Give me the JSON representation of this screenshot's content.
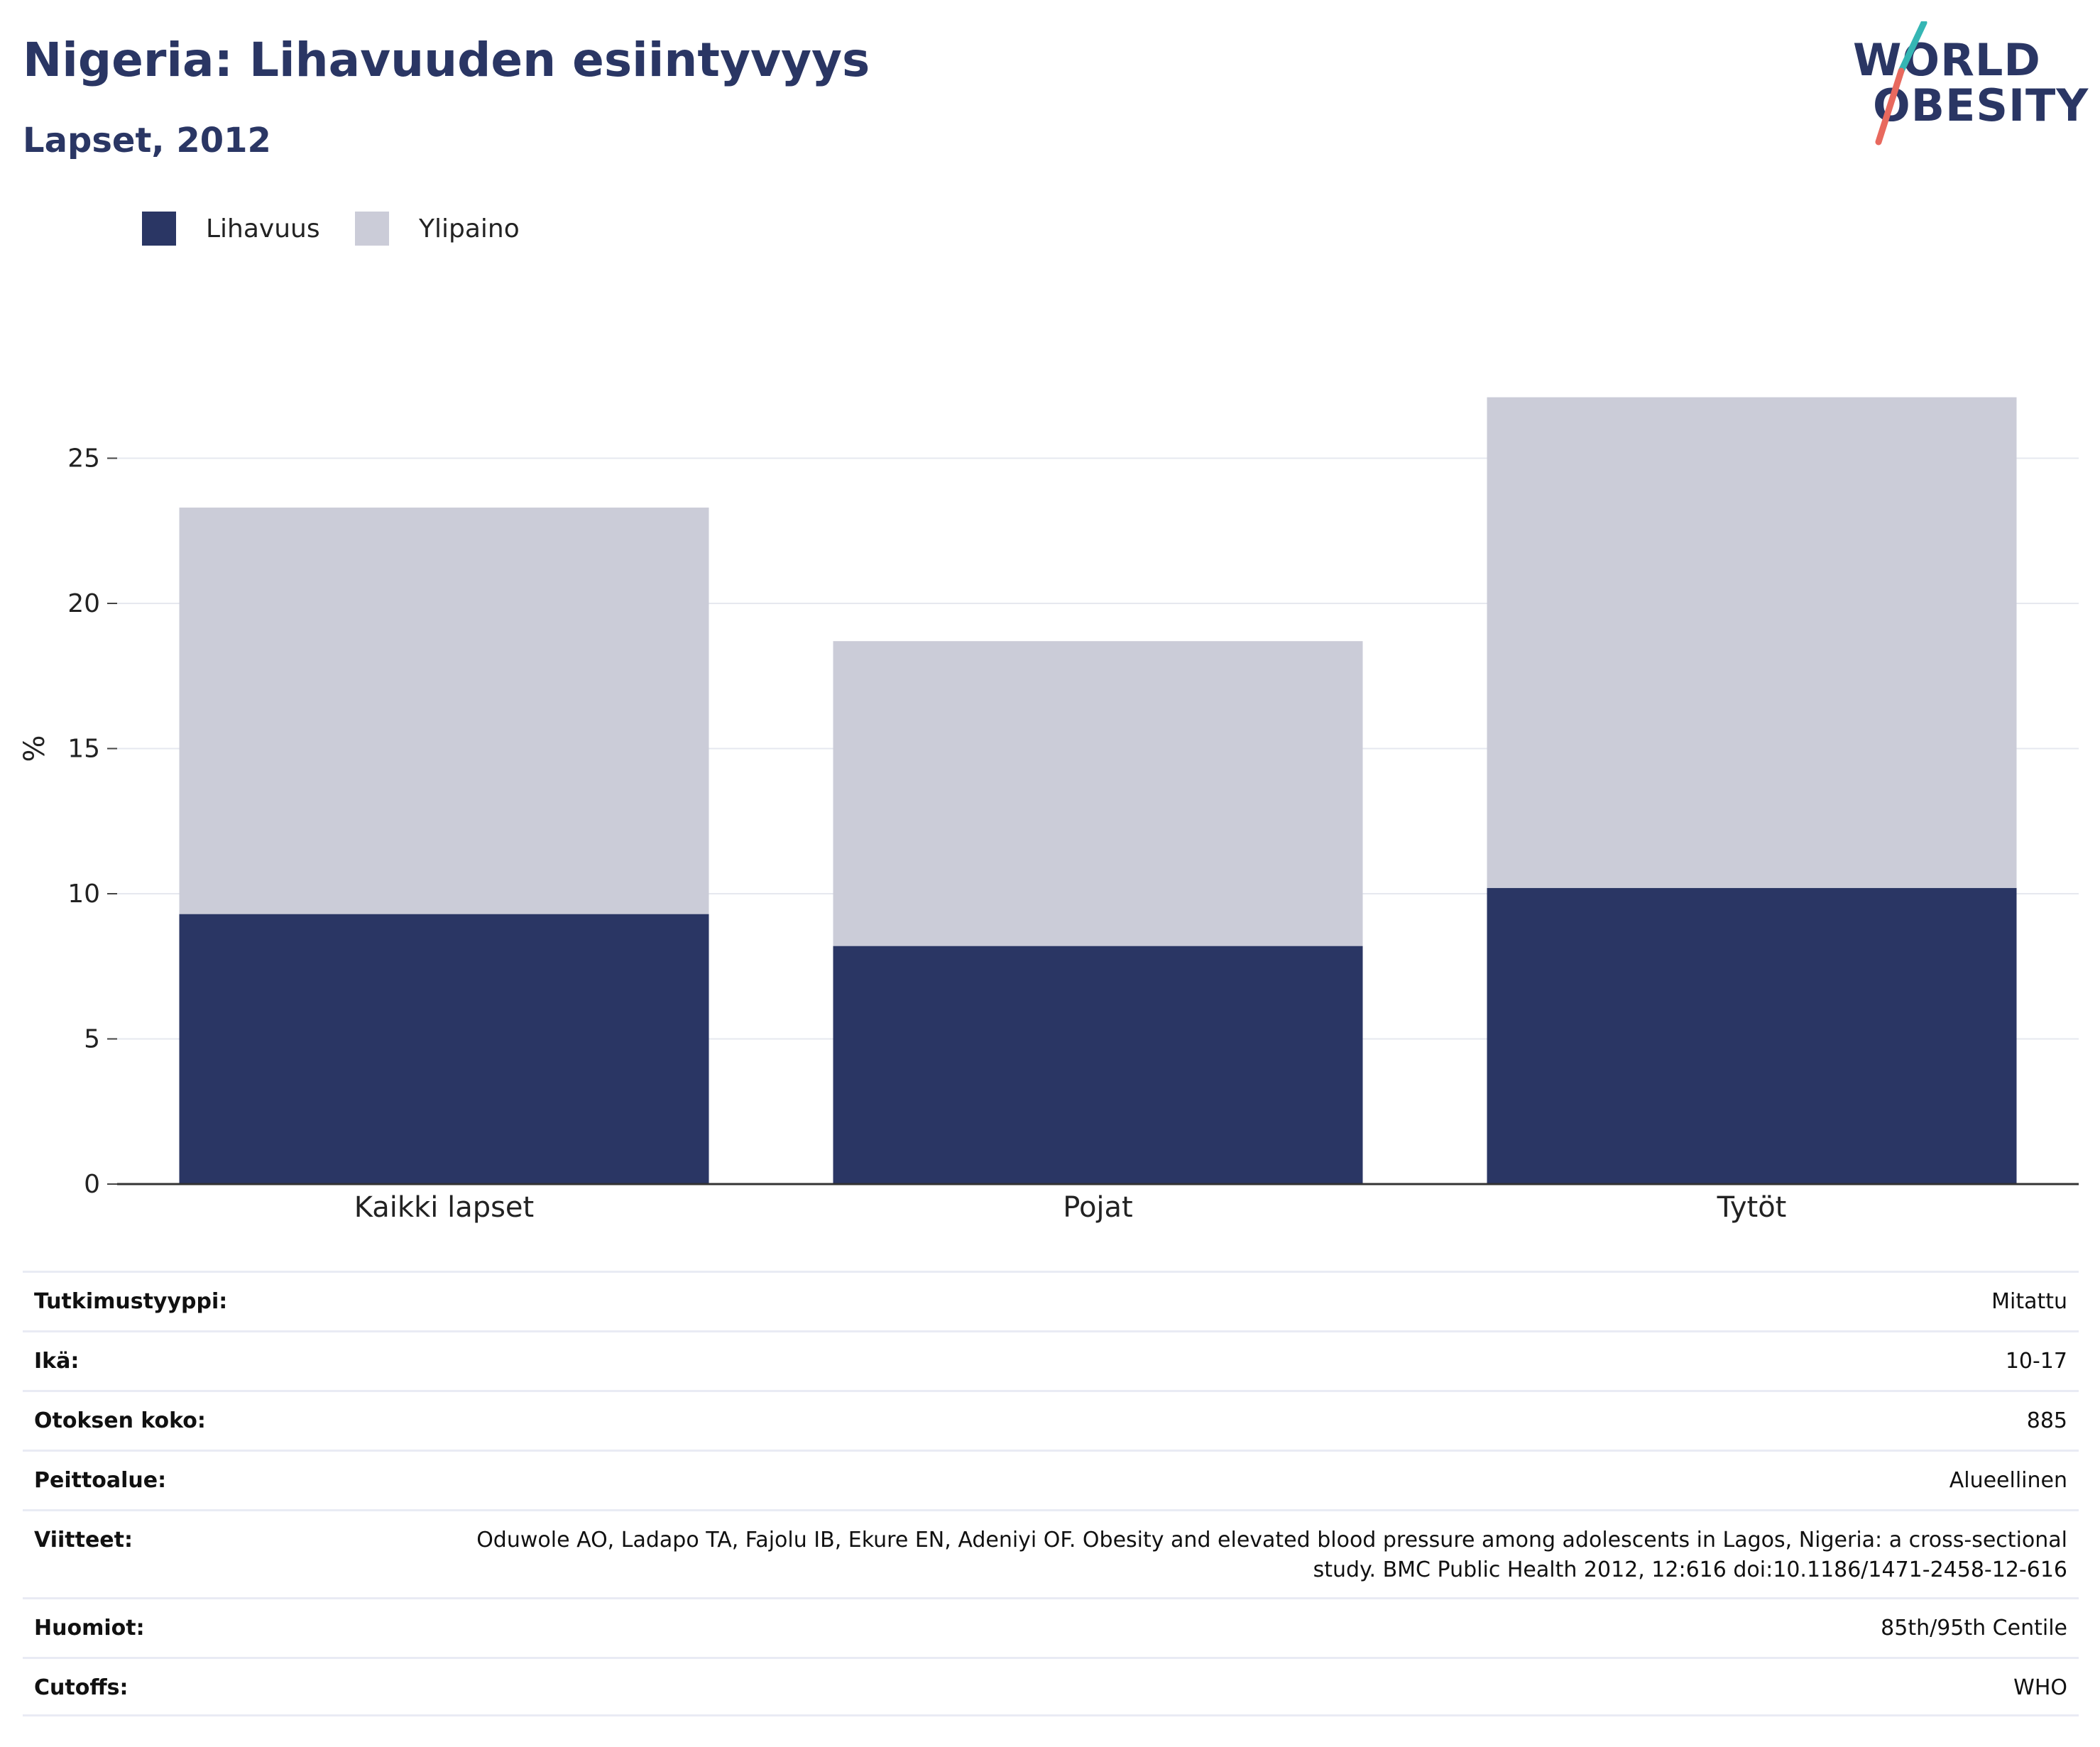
{
  "header": {
    "title": "Nigeria: Lihavuuden esiintyvyys",
    "subtitle": "Lapset, 2012"
  },
  "logo": {
    "line1": "WORLD",
    "line2": "OBESITY",
    "colors": {
      "text": "#2a3664",
      "slash_top": "#35b6b4",
      "slash_bottom": "#e8695e"
    }
  },
  "legend": {
    "items": [
      {
        "label": "Lihavuus",
        "color": "#2a3664"
      },
      {
        "label": "Ylipaino",
        "color": "#cbccd8"
      }
    ]
  },
  "chart_data": {
    "type": "bar",
    "stacked": true,
    "categories": [
      "Kaikki lapset",
      "Pojat",
      "Tytöt"
    ],
    "series": [
      {
        "name": "Lihavuus",
        "color": "#2a3664",
        "values": [
          9.3,
          8.2,
          10.2
        ]
      },
      {
        "name": "Ylipaino",
        "color": "#cbccd8",
        "values": [
          14.0,
          10.5,
          16.9
        ]
      }
    ],
    "ylabel": "%",
    "xlabel": "",
    "ylim": [
      0,
      30
    ],
    "yticks": [
      0,
      5,
      10,
      15,
      20,
      25
    ],
    "grid": true,
    "legend_position": "top-left"
  },
  "info": {
    "rows": [
      {
        "label": "Tutkimustyyppi:",
        "value": "Mitattu"
      },
      {
        "label": "Ikä:",
        "value": "10-17"
      },
      {
        "label": "Otoksen koko:",
        "value": "885"
      },
      {
        "label": "Peittoalue:",
        "value": "Alueellinen"
      },
      {
        "label": "Viitteet:",
        "value": "Oduwole AO, Ladapo TA, Fajolu IB, Ekure EN, Adeniyi OF. Obesity and elevated blood pressure among adolescents in Lagos, Nigeria: a cross-sectional study. BMC Public Health 2012, 12:616 doi:10.1186/1471-2458-12-616"
      },
      {
        "label": "Huomiot:",
        "value": "85th/95th Centile"
      },
      {
        "label": "Cutoffs:",
        "value": "WHO"
      }
    ]
  }
}
